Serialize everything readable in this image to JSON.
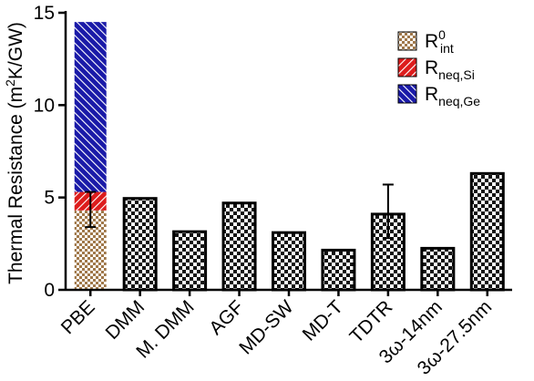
{
  "chart_data": {
    "type": "bar",
    "title": "",
    "ylabel_main": "Thermal Resistance (m",
    "ylabel_sup": "2",
    "ylabel_tail": "K/GW)",
    "ylim": [
      0,
      15
    ],
    "yticks": [
      0,
      5,
      10,
      15
    ],
    "categories": [
      "PBE",
      "DMM",
      "M. DMM",
      "AGF",
      "MD-SW",
      "MD-T",
      "TDTR",
      "3ω-14nm",
      "3ω-27.5nm"
    ],
    "stacked_bar": {
      "category": "PBE",
      "components": [
        {
          "name": "R0int",
          "base": "R",
          "sup": "0",
          "sub": "int",
          "value": 4.3,
          "pattern": "checker",
          "color": "#a0784a"
        },
        {
          "name": "Rneq,Si",
          "base": "R",
          "sup": "",
          "sub": "neq,Si",
          "value": 1.0,
          "pattern": "hatch-up",
          "color": "#dd1c1c"
        },
        {
          "name": "Rneq,Ge",
          "base": "R",
          "sup": "",
          "sub": "neq,Ge",
          "value": 9.2,
          "pattern": "hatch-down",
          "color": "#1a1aa8"
        }
      ],
      "error": {
        "center": 4.3,
        "minus": 0.9,
        "plus": 1.0
      }
    },
    "values": [
      14.5,
      4.95,
      3.15,
      4.7,
      3.1,
      2.15,
      4.1,
      2.25,
      6.3
    ],
    "errors": [
      null,
      null,
      null,
      null,
      null,
      null,
      {
        "minus": 1.3,
        "plus": 1.6
      },
      null,
      null
    ],
    "other_pattern": "checker-black",
    "legend": {
      "placement": "top-right"
    },
    "grid": false
  }
}
